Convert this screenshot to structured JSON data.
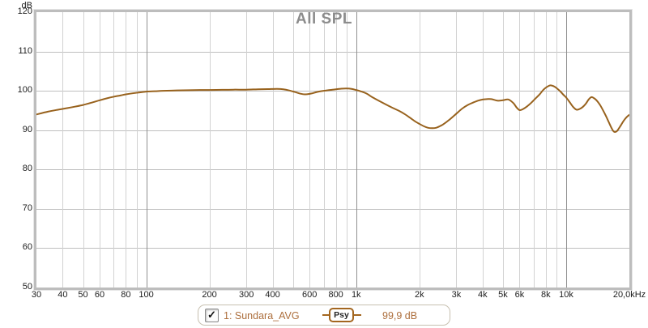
{
  "title": "All SPL",
  "y_axis": {
    "unit": "dB",
    "max": 120,
    "min": 50,
    "ticks": [
      120,
      110,
      100,
      90,
      80,
      70,
      60,
      50
    ]
  },
  "x_axis": {
    "min_hz": 30,
    "max_hz": 20000,
    "scale": "log",
    "gridlines_hz": [
      40,
      50,
      60,
      70,
      80,
      90,
      100,
      200,
      300,
      400,
      500,
      600,
      700,
      800,
      900,
      1000,
      2000,
      3000,
      4000,
      5000,
      6000,
      7000,
      8000,
      9000,
      10000
    ],
    "major_hz": [
      100,
      1000,
      10000
    ],
    "tick_labels": [
      {
        "hz": 30,
        "label": "30"
      },
      {
        "hz": 40,
        "label": "40"
      },
      {
        "hz": 50,
        "label": "50"
      },
      {
        "hz": 60,
        "label": "60"
      },
      {
        "hz": 80,
        "label": "80"
      },
      {
        "hz": 100,
        "label": "100"
      },
      {
        "hz": 200,
        "label": "200"
      },
      {
        "hz": 300,
        "label": "300"
      },
      {
        "hz": 400,
        "label": "400"
      },
      {
        "hz": 600,
        "label": "600"
      },
      {
        "hz": 800,
        "label": "800"
      },
      {
        "hz": 1000,
        "label": "1k"
      },
      {
        "hz": 2000,
        "label": "2k"
      },
      {
        "hz": 3000,
        "label": "3k"
      },
      {
        "hz": 4000,
        "label": "4k"
      },
      {
        "hz": 5000,
        "label": "5k"
      },
      {
        "hz": 6000,
        "label": "6k"
      },
      {
        "hz": 8000,
        "label": "8k"
      },
      {
        "hz": 10000,
        "label": "10k"
      },
      {
        "hz": 20000,
        "label": "20,0kHz"
      }
    ]
  },
  "legend": {
    "checked": true,
    "checkmark_icon": "✓",
    "trace_label": "1: Sundara_AVG",
    "smoothing_badge": "Psy",
    "value": "99,9 dB"
  },
  "colors": {
    "trace": "#98621d",
    "title": "#8c8c8c",
    "tick_label": "#1c1c1c",
    "grid_minor": "#d2d2d2",
    "grid_major": "#909090",
    "grid_horizontal": "#bfbfbf",
    "plot_border": "#bdbdbd",
    "legend_text": "#ad6f3d",
    "legend_border": "#c7c0b0",
    "badge_border": "#a3661f"
  },
  "chart_data": {
    "type": "line",
    "title": "All SPL",
    "xlabel": "",
    "ylabel": "dB",
    "x_scale": "log",
    "xlim": [
      30,
      20000
    ],
    "ylim": [
      50,
      120
    ],
    "grid": true,
    "legend_position": "bottom-center",
    "series": [
      {
        "name": "1: Sundara_AVG",
        "smoothing": "Psy",
        "level_db": "99,9 dB",
        "x": [
          30,
          34,
          38,
          42,
          46,
          50,
          55,
          60,
          65,
          70,
          75,
          80,
          90,
          100,
          110,
          120,
          140,
          160,
          180,
          200,
          230,
          260,
          300,
          340,
          380,
          420,
          450,
          480,
          510,
          540,
          570,
          610,
          650,
          700,
          750,
          800,
          850,
          900,
          950,
          1000,
          1060,
          1120,
          1200,
          1300,
          1400,
          1500,
          1600,
          1700,
          1800,
          1900,
          2000,
          2100,
          2200,
          2300,
          2400,
          2500,
          2600,
          2800,
          3000,
          3200,
          3400,
          3600,
          3800,
          4000,
          4200,
          4400,
          4700,
          5000,
          5300,
          5600,
          5800,
          6000,
          6200,
          6500,
          6800,
          7100,
          7500,
          7800,
          8100,
          8400,
          8700,
          9000,
          9400,
          9700,
          10000,
          10400,
          10800,
          11200,
          11600,
          12000,
          12400,
          12800,
          13200,
          13600,
          14000,
          14500,
          15000,
          15500,
          16000,
          16500,
          16900,
          17400,
          17800,
          18300,
          18800,
          19400,
          20000
        ],
        "values": [
          94.0,
          94.7,
          95.2,
          95.6,
          96.0,
          96.4,
          97.0,
          97.6,
          98.1,
          98.5,
          98.8,
          99.1,
          99.5,
          99.8,
          99.9,
          100.0,
          100.1,
          100.15,
          100.2,
          100.2,
          100.25,
          100.3,
          100.3,
          100.4,
          100.45,
          100.5,
          100.4,
          100.1,
          99.7,
          99.3,
          99.1,
          99.3,
          99.7,
          100.0,
          100.2,
          100.4,
          100.55,
          100.6,
          100.5,
          100.2,
          99.8,
          99.3,
          98.3,
          97.3,
          96.4,
          95.6,
          94.9,
          94.1,
          93.2,
          92.3,
          91.6,
          91.0,
          90.6,
          90.5,
          90.6,
          91.0,
          91.5,
          92.8,
          94.2,
          95.5,
          96.4,
          97.0,
          97.5,
          97.8,
          97.9,
          97.9,
          97.5,
          97.6,
          97.8,
          96.9,
          95.8,
          95.1,
          95.3,
          96.0,
          96.9,
          97.9,
          99.2,
          100.3,
          101.0,
          101.4,
          101.2,
          100.7,
          99.8,
          99.0,
          98.3,
          97.1,
          95.9,
          95.2,
          95.4,
          95.9,
          96.7,
          97.8,
          98.4,
          98.1,
          97.5,
          96.4,
          95.0,
          93.5,
          91.9,
          90.4,
          89.6,
          89.7,
          90.4,
          91.4,
          92.4,
          93.3,
          93.9
        ]
      }
    ]
  }
}
